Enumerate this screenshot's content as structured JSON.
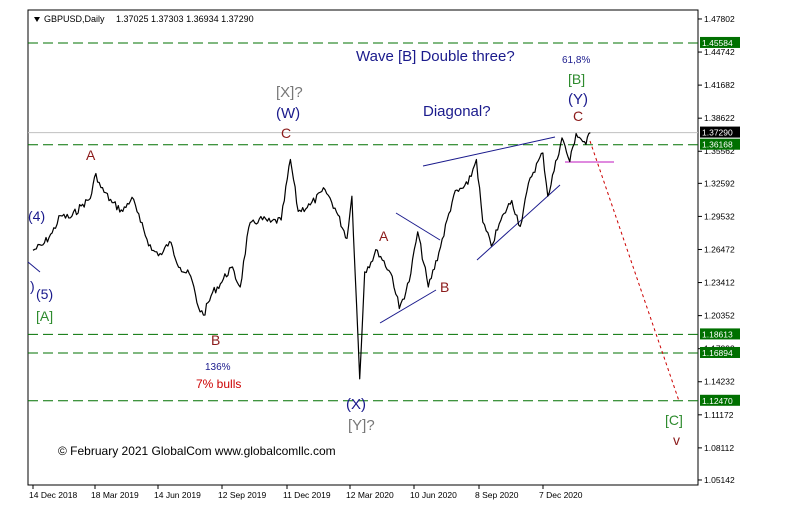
{
  "header": {
    "triangle_icon": "down-triangle",
    "symbol": "GBPUSD,Daily",
    "ohlc": "1.37025 1.37303 1.36934 1.37290"
  },
  "copyright": "© February 2021 GlobalCom www.globalcomllc.com",
  "colors": {
    "price_line": "#000000",
    "dashed_line": "#007000",
    "level_tag_bg": "#007000",
    "current_tag_bg": "#000000",
    "wave_blue": "#1a1a8c",
    "wave_red": "#8b1a1a",
    "wave_green": "#2e8b2e",
    "wave_gray": "#777777",
    "projection": "#cc0000",
    "magenta": "#cc44cc"
  },
  "chart_data": {
    "type": "line",
    "title": "GBPUSD,Daily",
    "x_ticks": [
      "14 Dec 2018",
      "18 Mar 2019",
      "14 Jun 2019",
      "12 Sep 2019",
      "11 Dec 2019",
      "12 Mar 2020",
      "10 Jun 2020",
      "8 Sep 2020",
      "7 Dec 2020"
    ],
    "y_ticks": [
      "1.47802",
      "1.44742",
      "1.41682",
      "1.38622",
      "1.35562",
      "1.32592",
      "1.29532",
      "1.26472",
      "1.23412",
      "1.20352",
      "1.17292",
      "1.14232",
      "1.11172",
      "1.08112",
      "1.05142"
    ],
    "ylim": [
      1.0514,
      1.478
    ],
    "current_price": "1.37290",
    "horizontal_levels": [
      "1.45584",
      "1.36168",
      "1.18613",
      "1.16894",
      "1.12470"
    ],
    "series": [
      {
        "values": [
          [
            "2018-12-14",
            1.264
          ],
          [
            "2018-12-28",
            1.269
          ],
          [
            "2019-01-10",
            1.28
          ],
          [
            "2019-01-22",
            1.296
          ],
          [
            "2019-02-05",
            1.294
          ],
          [
            "2019-02-20",
            1.305
          ],
          [
            "2019-03-05",
            1.312
          ],
          [
            "2019-03-13",
            1.335
          ],
          [
            "2019-03-20",
            1.322
          ],
          [
            "2019-04-05",
            1.308
          ],
          [
            "2019-04-20",
            1.3
          ],
          [
            "2019-05-03",
            1.313
          ],
          [
            "2019-05-15",
            1.29
          ],
          [
            "2019-05-31",
            1.264
          ],
          [
            "2019-06-14",
            1.26
          ],
          [
            "2019-06-25",
            1.272
          ],
          [
            "2019-07-10",
            1.248
          ],
          [
            "2019-07-25",
            1.24
          ],
          [
            "2019-08-05",
            1.211
          ],
          [
            "2019-08-12",
            1.204
          ],
          [
            "2019-08-25",
            1.225
          ],
          [
            "2019-09-05",
            1.233
          ],
          [
            "2019-09-20",
            1.248
          ],
          [
            "2019-10-03",
            1.23
          ],
          [
            "2019-10-15",
            1.285
          ],
          [
            "2019-10-30",
            1.293
          ],
          [
            "2019-11-15",
            1.29
          ],
          [
            "2019-11-30",
            1.292
          ],
          [
            "2019-12-13",
            1.348
          ],
          [
            "2019-12-24",
            1.3
          ],
          [
            "2020-01-10",
            1.306
          ],
          [
            "2020-01-31",
            1.32
          ],
          [
            "2020-02-14",
            1.303
          ],
          [
            "2020-03-02",
            1.275
          ],
          [
            "2020-03-09",
            1.314
          ],
          [
            "2020-03-20",
            1.145
          ],
          [
            "2020-03-27",
            1.244
          ],
          [
            "2020-04-14",
            1.264
          ],
          [
            "2020-05-05",
            1.24
          ],
          [
            "2020-05-15",
            1.21
          ],
          [
            "2020-05-29",
            1.235
          ],
          [
            "2020-06-10",
            1.281
          ],
          [
            "2020-06-25",
            1.23
          ],
          [
            "2020-07-10",
            1.262
          ],
          [
            "2020-07-31",
            1.315
          ],
          [
            "2020-08-20",
            1.325
          ],
          [
            "2020-09-01",
            1.348
          ],
          [
            "2020-09-10",
            1.29
          ],
          [
            "2020-09-22",
            1.268
          ],
          [
            "2020-10-10",
            1.298
          ],
          [
            "2020-10-21",
            1.31
          ],
          [
            "2020-11-02",
            1.286
          ],
          [
            "2020-11-16",
            1.331
          ],
          [
            "2020-12-04",
            1.354
          ],
          [
            "2020-12-11",
            1.314
          ],
          [
            "2020-12-31",
            1.368
          ],
          [
            "2021-01-11",
            1.346
          ],
          [
            "2021-01-20",
            1.372
          ],
          [
            "2021-02-03",
            1.362
          ],
          [
            "2021-02-09",
            1.3729
          ]
        ]
      }
    ],
    "projection_target": "1.12470",
    "annotations": [
      "Wave [B] Double three?",
      "61,8%",
      "[B]",
      "(Y)",
      "C",
      "[X]?",
      "(W)",
      "C",
      "Diagonal?",
      "A",
      "A",
      "B",
      "B",
      "136%",
      "7% bulls",
      "(X)",
      "[Y]?",
      "(4)",
      "(5)",
      "[A]",
      "[C]",
      "v"
    ]
  },
  "labels": {
    "wave_b_title": "Wave [B] Double three?",
    "fib_618": "61,8%",
    "b_bracket": "[B]",
    "y_paren": "(Y)",
    "c_top": "C",
    "x_bracket_q": "[X]?",
    "w_paren": "(W)",
    "c_mid": "C",
    "diagonal": "Diagonal?",
    "a_left": "A",
    "a_mid": "A",
    "b_left": "B",
    "b_mid": "B",
    "pct_136": "136%",
    "bulls": "7% bulls",
    "x_paren": "(X)",
    "y_bracket_q": "[Y]?",
    "four_paren": "(4)",
    "five_paren": "(5)",
    "a_bracket": "[A]",
    "c_bracket": "[C]",
    "v_small": "v"
  }
}
